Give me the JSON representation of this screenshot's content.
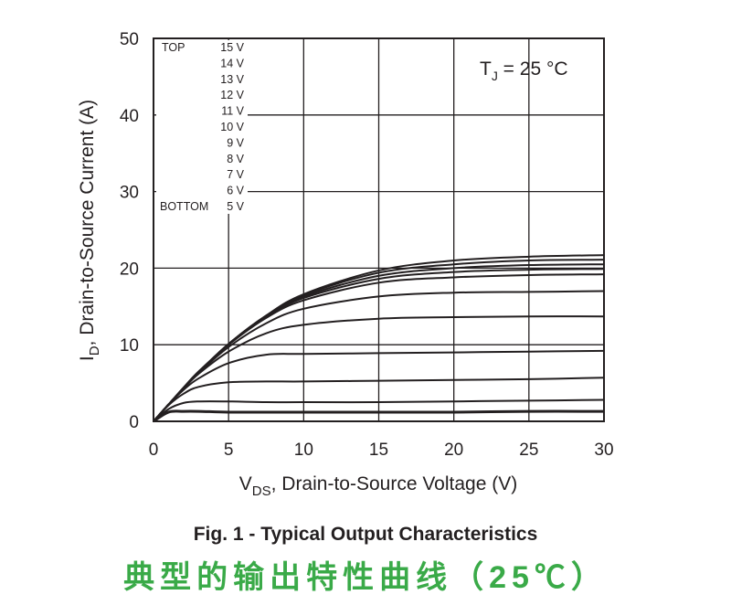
{
  "chart_data": {
    "type": "line",
    "title": "Fig. 1 - Typical Output Characteristics",
    "subtitle": "典型的输出特性曲线（25℃）",
    "xlabel": {
      "main": "V",
      "sub": "DS",
      "rest": ", Drain-to-Source Voltage (V)"
    },
    "ylabel": {
      "main": "I",
      "sub": "D",
      "rest": ", Drain-to-Source Current (A)"
    },
    "xlim": [
      0,
      30
    ],
    "ylim": [
      0,
      50
    ],
    "xticks": [
      "0",
      "5",
      "10",
      "15",
      "20",
      "25",
      "30"
    ],
    "yticks": [
      "0",
      "10",
      "20",
      "30",
      "40",
      "50"
    ],
    "grid": true,
    "annotation": {
      "main": "T",
      "sub": "J",
      "rest": " = 25 °C"
    },
    "legend": {
      "placement": "top-left",
      "top_label": "TOP",
      "bottom_label": "BOTTOM",
      "entries": [
        "15 V",
        "14 V",
        "13 V",
        "12 V",
        "11 V",
        "10 V",
        "9 V",
        "8 V",
        "7 V",
        "6 V",
        "5 V"
      ]
    },
    "line_color": "#231f20",
    "x": [
      0,
      1,
      2,
      3,
      5,
      7.5,
      10,
      15,
      20,
      25,
      30
    ],
    "series": [
      {
        "name": "15 V",
        "values": [
          0,
          2.2,
          4.3,
          6.3,
          10.1,
          13.8,
          16.6,
          19.7,
          21.0,
          21.5,
          21.7
        ]
      },
      {
        "name": "14 V",
        "values": [
          0,
          2.2,
          4.3,
          6.4,
          10.1,
          13.8,
          16.5,
          19.4,
          20.5,
          21.0,
          21.1
        ]
      },
      {
        "name": "13 V",
        "values": [
          0,
          2.2,
          4.4,
          6.4,
          10.1,
          13.7,
          16.3,
          19.0,
          20.0,
          20.4,
          20.5
        ]
      },
      {
        "name": "12 V",
        "values": [
          0,
          2.2,
          4.4,
          6.4,
          10.1,
          13.6,
          16.1,
          18.6,
          19.5,
          19.8,
          19.9
        ]
      },
      {
        "name": "11 V",
        "values": [
          0,
          2.2,
          4.4,
          6.5,
          10.0,
          13.5,
          15.8,
          18.1,
          18.8,
          19.1,
          19.2
        ]
      },
      {
        "name": "10 V",
        "values": [
          0,
          2.2,
          4.3,
          6.3,
          9.7,
          12.8,
          14.7,
          16.3,
          16.8,
          16.9,
          17.0
        ]
      },
      {
        "name": "9 V",
        "values": [
          0,
          2.2,
          4.3,
          6.2,
          9.1,
          11.5,
          12.6,
          13.4,
          13.6,
          13.7,
          13.7
        ]
      },
      {
        "name": "8 V",
        "values": [
          0,
          2.2,
          4.1,
          5.6,
          7.6,
          8.7,
          8.8,
          8.9,
          9.0,
          9.1,
          9.2
        ]
      },
      {
        "name": "7 V",
        "values": [
          0,
          2.1,
          3.6,
          4.5,
          5.1,
          5.2,
          5.2,
          5.3,
          5.4,
          5.5,
          5.7
        ]
      },
      {
        "name": "6 V",
        "values": [
          0,
          1.6,
          2.4,
          2.6,
          2.6,
          2.5,
          2.5,
          2.5,
          2.6,
          2.7,
          2.8
        ]
      },
      {
        "name": "5 V",
        "values": [
          0,
          1.2,
          1.3,
          1.3,
          1.2,
          1.2,
          1.2,
          1.2,
          1.2,
          1.3,
          1.3
        ]
      }
    ]
  }
}
